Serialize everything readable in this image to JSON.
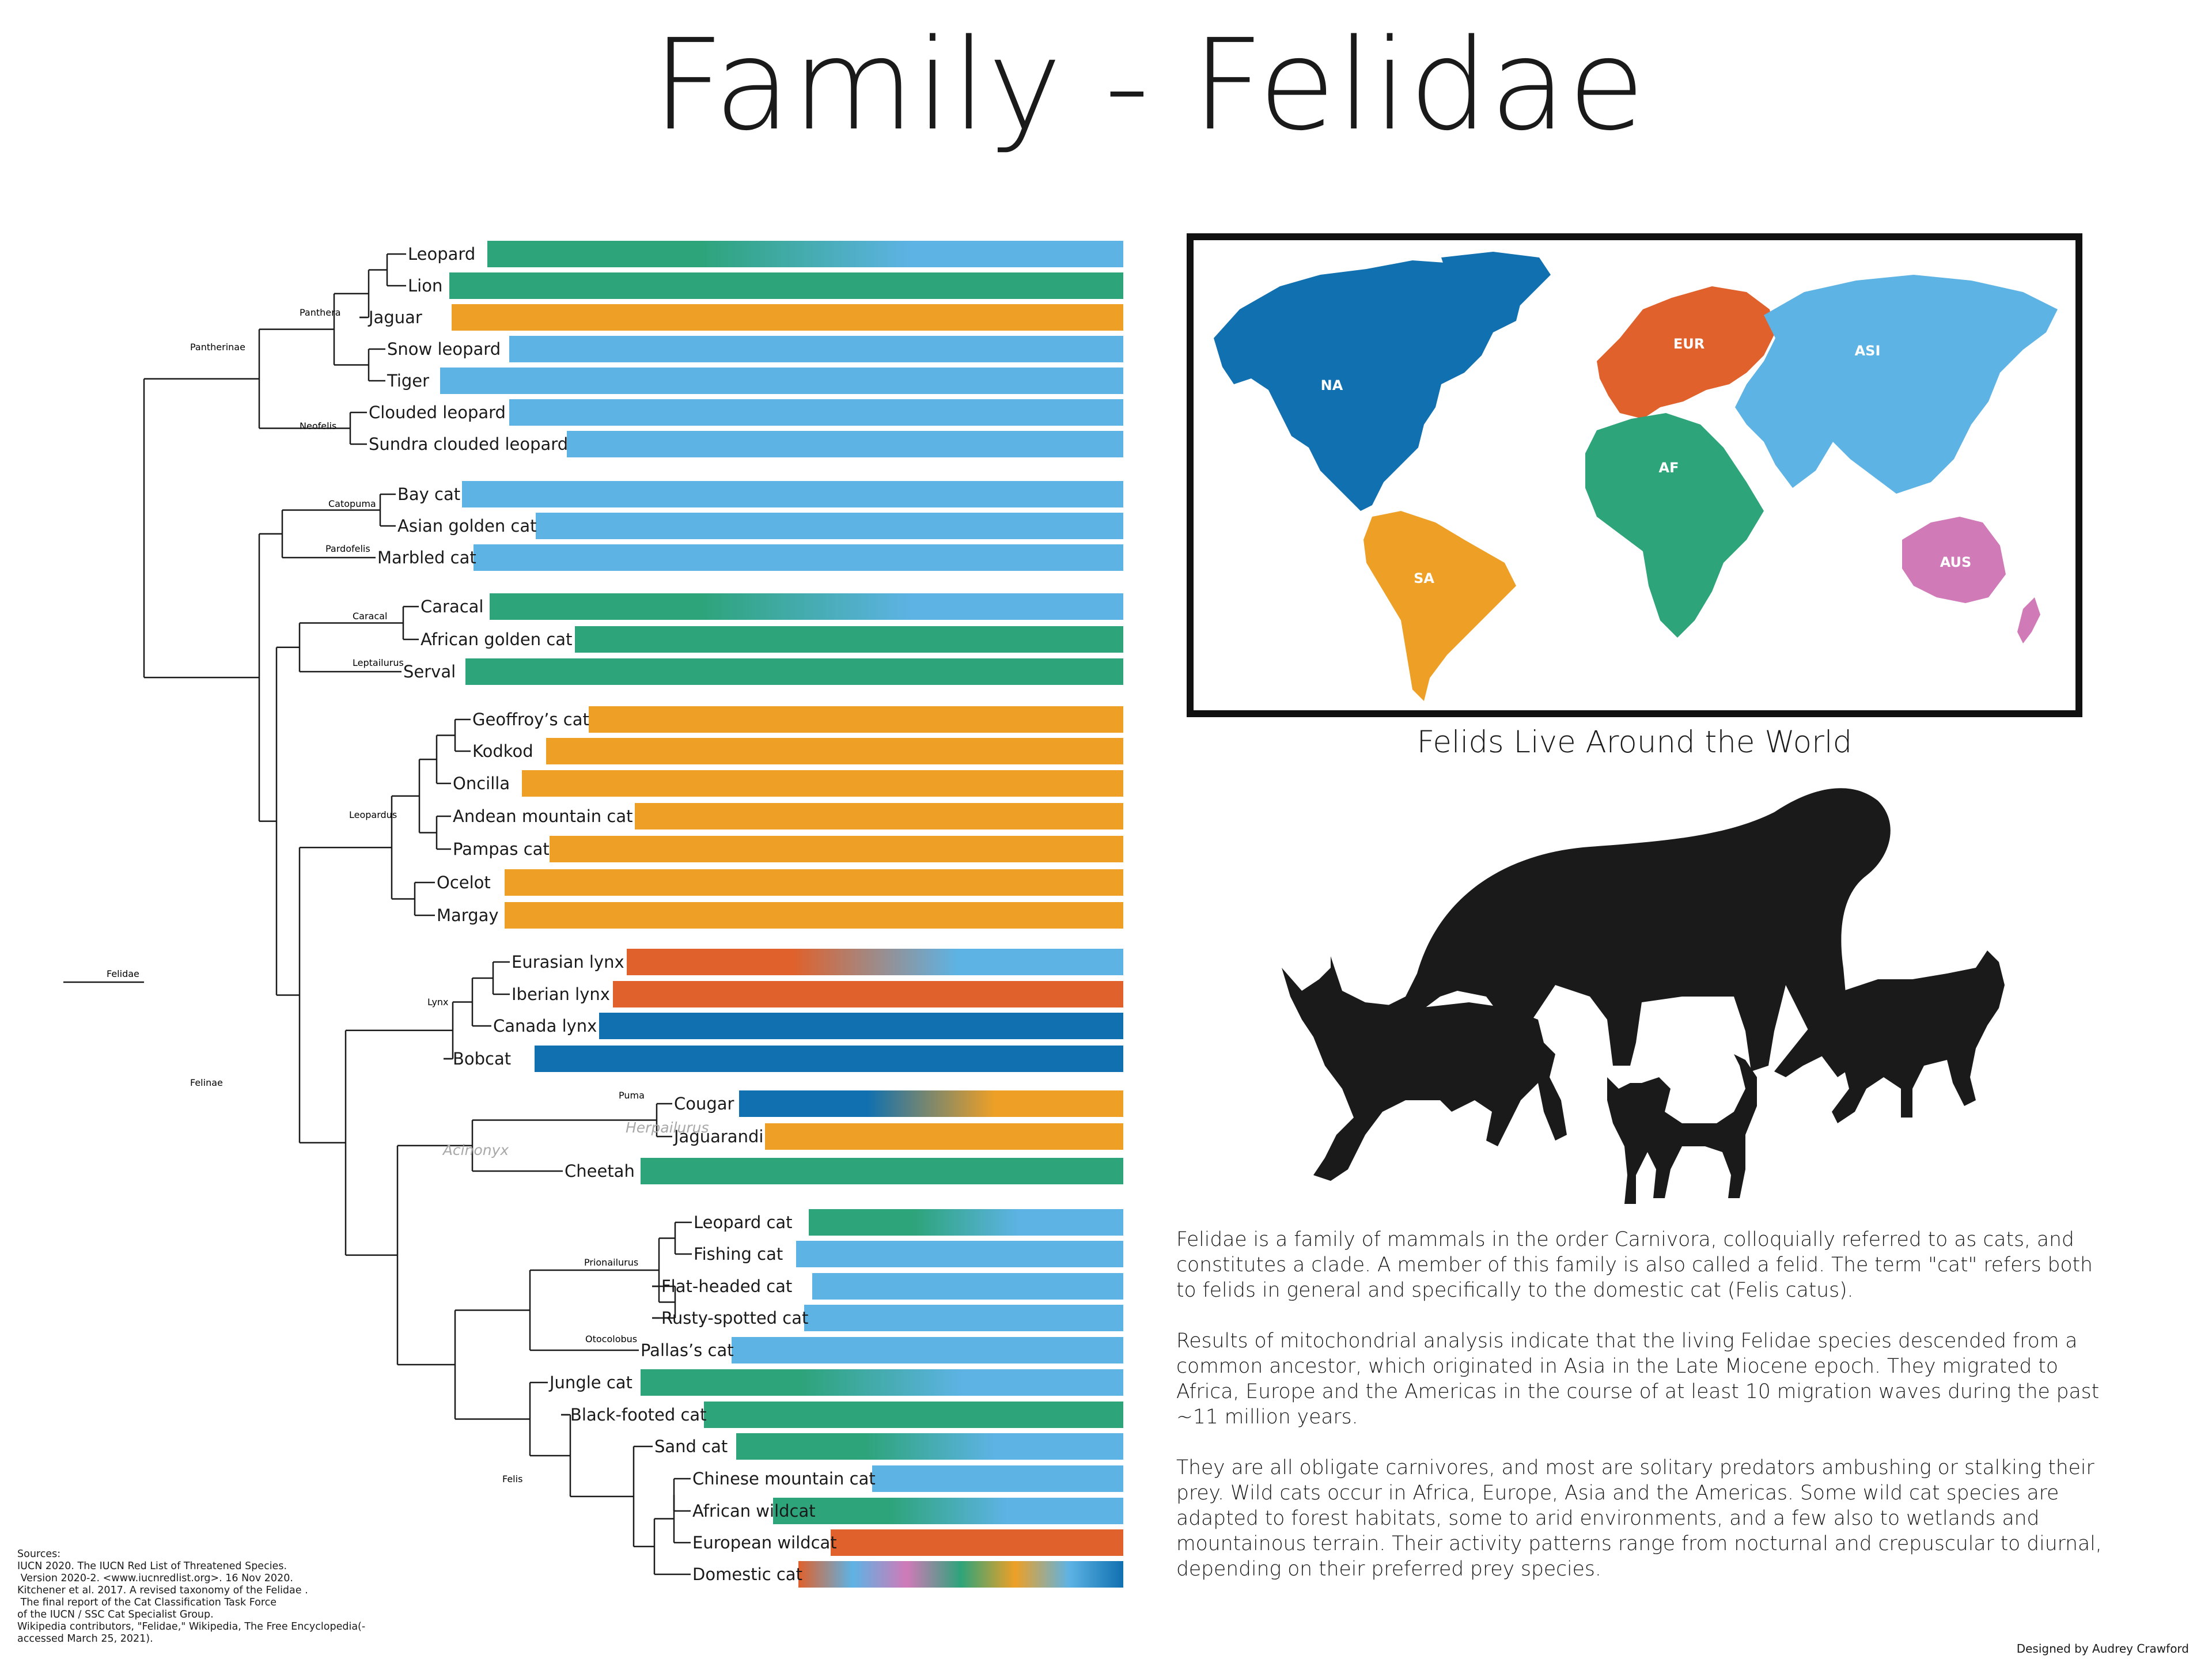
{
  "title": "Family - Felidae",
  "family_label": "Felidae",
  "subfamilies": [
    "Pantherinae",
    "Felinae"
  ],
  "genera": [
    "Panthera",
    "Neofelis",
    "Catopuma",
    "Pardofelis",
    "Caracal",
    "Leptailurus",
    "Leopardus",
    "Lynx",
    "Puma",
    "Herpailurus",
    "Acinonyx",
    "Prionailurus",
    "Otocolobus",
    "Felis"
  ],
  "regions": [
    {
      "code": "NA",
      "name": "North America",
      "color": "#1070b0"
    },
    {
      "code": "SA",
      "name": "South America",
      "color": "#eea026"
    },
    {
      "code": "EUR",
      "name": "Europe",
      "color": "#e0612b"
    },
    {
      "code": "AF",
      "name": "Africa",
      "color": "#2da47a"
    },
    {
      "code": "ASI",
      "name": "Asia",
      "color": "#5db3e4"
    },
    {
      "code": "AUS",
      "name": "Australia",
      "color": "#d07ab8"
    }
  ],
  "species": [
    {
      "name": "Leopard",
      "regions": [
        "AF",
        "AF",
        "ASI",
        "ASI"
      ]
    },
    {
      "name": "Lion",
      "regions": [
        "AF"
      ]
    },
    {
      "name": "Jaguar",
      "regions": [
        "SA"
      ]
    },
    {
      "name": "Snow leopard",
      "regions": [
        "ASI"
      ]
    },
    {
      "name": "Tiger",
      "regions": [
        "ASI"
      ]
    },
    {
      "name": "Clouded leopard",
      "regions": [
        "ASI"
      ]
    },
    {
      "name": "Sundra clouded leopard",
      "regions": [
        "ASI"
      ]
    },
    {
      "name": "Bay cat",
      "regions": [
        "ASI"
      ]
    },
    {
      "name": "Asian golden cat",
      "regions": [
        "ASI"
      ]
    },
    {
      "name": "Marbled cat",
      "regions": [
        "ASI"
      ]
    },
    {
      "name": "Caracal",
      "regions": [
        "AF",
        "AF",
        "ASI",
        "ASI"
      ]
    },
    {
      "name": "African golden cat",
      "regions": [
        "AF"
      ]
    },
    {
      "name": "Serval",
      "regions": [
        "AF"
      ]
    },
    {
      "name": "Geoffroy’s cat",
      "regions": [
        "SA"
      ]
    },
    {
      "name": "Kodkod",
      "regions": [
        "SA"
      ]
    },
    {
      "name": "Oncilla",
      "regions": [
        "SA"
      ]
    },
    {
      "name": "Andean mountain cat",
      "regions": [
        "SA"
      ]
    },
    {
      "name": "Pampas cat",
      "regions": [
        "SA"
      ]
    },
    {
      "name": "Ocelot",
      "regions": [
        "SA"
      ]
    },
    {
      "name": "Margay",
      "regions": [
        "SA"
      ]
    },
    {
      "name": "Eurasian lynx",
      "regions": [
        "EUR",
        "EUR",
        "ASI",
        "ASI"
      ]
    },
    {
      "name": "Iberian lynx",
      "regions": [
        "EUR"
      ]
    },
    {
      "name": "Canada lynx",
      "regions": [
        "NA"
      ]
    },
    {
      "name": "Bobcat",
      "regions": [
        "NA"
      ]
    },
    {
      "name": "Cougar",
      "regions": [
        "NA",
        "NA",
        "SA",
        "SA"
      ]
    },
    {
      "name": "Jaguarandi",
      "regions": [
        "SA"
      ]
    },
    {
      "name": "Cheetah",
      "regions": [
        "AF"
      ]
    },
    {
      "name": "Leopard cat",
      "regions": [
        "AF",
        "AF",
        "ASI",
        "ASI"
      ]
    },
    {
      "name": "Fishing cat",
      "regions": [
        "ASI"
      ]
    },
    {
      "name": "Flat-headed cat",
      "regions": [
        "ASI"
      ]
    },
    {
      "name": "Rusty-spotted cat",
      "regions": [
        "ASI"
      ]
    },
    {
      "name": "Pallas’s cat",
      "regions": [
        "ASI"
      ]
    },
    {
      "name": "Jungle cat",
      "regions": [
        "AF",
        "AF",
        "ASI",
        "ASI"
      ]
    },
    {
      "name": "Black-footed cat",
      "regions": [
        "AF"
      ]
    },
    {
      "name": "Sand cat",
      "regions": [
        "AF",
        "AF",
        "ASI",
        "ASI"
      ]
    },
    {
      "name": "Chinese mountain cat",
      "regions": [
        "ASI"
      ]
    },
    {
      "name": "African wildcat",
      "regions": [
        "AF",
        "AF",
        "ASI",
        "ASI"
      ]
    },
    {
      "name": "European wildcat",
      "regions": [
        "EUR"
      ]
    },
    {
      "name": "Domestic cat",
      "regions": [
        "EUR",
        "ASI",
        "AUS",
        "AF",
        "SA",
        "ASI",
        "NA"
      ]
    }
  ],
  "map_caption": "Felids Live Around the World",
  "description": [
    "Felidae is a family of mammals in the order Carnivora, colloquially referred to as cats, and constitutes a clade. A member of this family is also called a felid. The term \"cat\" refers both to felids in general and specifically to the domestic cat (Felis catus).",
    "Results of mitochondrial analysis indicate that the living Felidae species descended from a common ancestor, which originated in Asia in the Late Miocene epoch. They migrated to Africa, Europe and the Americas in the course of at least 10 migration waves during the past ~11 million years.",
    "They are all obligate carnivores, and most are solitary predators ambushing or stalking their prey. Wild cats occur in Africa, Europe, Asia and the Americas. Some wild cat species are adapted to forest habitats, some to arid environments, and a few also to wetlands and mountainous terrain. Their activity patterns range from nocturnal and crepuscular to diurnal, depending on their preferred prey species."
  ],
  "sources": [
    "Sources:",
    "IUCN 2020. The IUCN Red List of Threatened Species.",
    " Version 2020-2. <www.iucnredlist.org>. 16 Nov 2020.",
    "Kitchener et al. 2017. A revised taxonomy of the Felidae .",
    " The final report of the Cat Classification Task Force",
    "of the IUCN / SSC Cat Specialist Group.",
    "Wikipedia contributors, \"Felidae,\" Wikipedia, The Free Encyclopedia(-",
    "accessed March 25, 2021)."
  ],
  "credit": "Designed by Audrey Crawford"
}
